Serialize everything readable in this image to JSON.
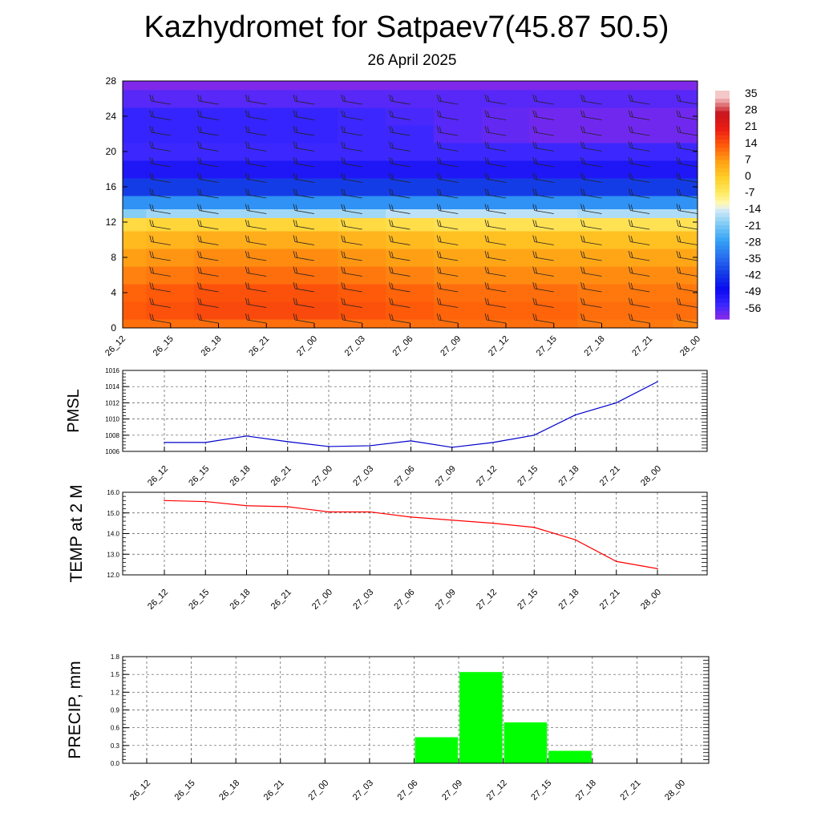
{
  "title": "Kazhydromet for Satpaev7(45.87 50.5)",
  "subtitle": "26 April 2025",
  "chart_data": [
    {
      "type": "heatmap",
      "name": "upper-air-cross-section",
      "x_categories": [
        "26_12",
        "26_15",
        "26_18",
        "26_21",
        "27_00",
        "27_03",
        "27_06",
        "27_09",
        "27_12",
        "27_15",
        "27_18",
        "27_21",
        "28_00"
      ],
      "y_ticks": [
        0,
        4,
        8,
        12,
        16,
        20,
        24,
        28
      ],
      "ylim": [
        0,
        28
      ],
      "colorbar_labels": [
        "35",
        "28",
        "21",
        "14",
        "7",
        "0",
        "-7",
        "-14",
        "-21",
        "-28",
        "-35",
        "-42",
        "-49",
        "-56"
      ],
      "levels": [
        0,
        2,
        4,
        6,
        8,
        10,
        12,
        13,
        14,
        16,
        18,
        20,
        22,
        24,
        26,
        28
      ],
      "temperature_by_level": [
        [
          12,
          12,
          12,
          12,
          12,
          12,
          12,
          12,
          12,
          12,
          11,
          11,
          10
        ],
        [
          14,
          15,
          16,
          16,
          16,
          15,
          14,
          13,
          13,
          13,
          12,
          12,
          12
        ],
        [
          13,
          14,
          15,
          15,
          15,
          14,
          13,
          12,
          12,
          12,
          11,
          11,
          11
        ],
        [
          10,
          11,
          12,
          12,
          12,
          11,
          10,
          9,
          9,
          9,
          9,
          9,
          9
        ],
        [
          7,
          8,
          9,
          9,
          9,
          8,
          7,
          6,
          6,
          6,
          6,
          6,
          6
        ],
        [
          3,
          4,
          5,
          5,
          5,
          4,
          3,
          2,
          2,
          2,
          2,
          2,
          2
        ],
        [
          -3,
          -2,
          -2,
          -2,
          -2,
          -3,
          -4,
          -5,
          -5,
          -5,
          -5,
          -5,
          -5
        ],
        [
          -20,
          -18,
          -18,
          -18,
          -18,
          -18,
          -16,
          -16,
          -16,
          -16,
          -17,
          -17,
          -17
        ],
        [
          -30,
          -30,
          -30,
          -30,
          -30,
          -30,
          -30,
          -30,
          -30,
          -30,
          -30,
          -30,
          -30
        ],
        [
          -42,
          -42,
          -42,
          -42,
          -42,
          -42,
          -42,
          -42,
          -42,
          -42,
          -42,
          -42,
          -42
        ],
        [
          -52,
          -52,
          -52,
          -52,
          -52,
          -52,
          -52,
          -52,
          -52,
          -52,
          -52,
          -52,
          -52
        ],
        [
          -56,
          -56,
          -56,
          -56,
          -56,
          -56,
          -56,
          -56,
          -56,
          -56,
          -56,
          -56,
          -56
        ],
        [
          -55,
          -55,
          -55,
          -55,
          -55,
          -56,
          -56,
          -58,
          -59,
          -60,
          -60,
          -60,
          -60
        ],
        [
          -55,
          -55,
          -55,
          -55,
          -55,
          -56,
          -57,
          -58,
          -59,
          -60,
          -60,
          -60,
          -60
        ],
        [
          -58,
          -58,
          -58,
          -58,
          -58,
          -58,
          -58,
          -58,
          -58,
          -58,
          -58,
          -58,
          -58
        ],
        [
          -61,
          -61,
          -61,
          -61,
          -61,
          -61,
          -61,
          -61,
          -61,
          -61,
          -61,
          -61,
          -61
        ]
      ],
      "wind_barbs": "present"
    },
    {
      "type": "line",
      "name": "pmsl",
      "ylabel": "PMSL",
      "categories": [
        "26_12",
        "26_15",
        "26_18",
        "26_21",
        "27_00",
        "27_03",
        "27_06",
        "27_09",
        "27_12",
        "27_15",
        "27_18",
        "27_21",
        "28_00"
      ],
      "values": [
        1007.1,
        1007.1,
        1007.9,
        1007.2,
        1006.6,
        1006.7,
        1007.3,
        1006.5,
        1007.1,
        1008.0,
        1010.5,
        1012.0,
        1014.6
      ],
      "ylim": [
        1006,
        1016
      ],
      "y_ticks": [
        "1006",
        "1008",
        "1010",
        "1012",
        "1014",
        "1016"
      ],
      "color": "#0000cc",
      "grid": true
    },
    {
      "type": "line",
      "name": "temp-2m",
      "ylabel": "TEMP at 2 M",
      "categories": [
        "26_12",
        "26_15",
        "26_18",
        "26_21",
        "27_00",
        "27_03",
        "27_06",
        "27_09",
        "27_12",
        "27_15",
        "27_18",
        "27_21",
        "28_00"
      ],
      "values": [
        15.6,
        15.55,
        15.35,
        15.3,
        15.05,
        15.05,
        14.8,
        14.65,
        14.5,
        14.3,
        13.7,
        12.65,
        12.3
      ],
      "ylim": [
        12.0,
        16.0
      ],
      "y_ticks": [
        "12.0",
        "13.0",
        "14.0",
        "15.0",
        "16.0"
      ],
      "color": "#ff0000",
      "grid": true
    },
    {
      "type": "bar",
      "name": "precip",
      "ylabel": "PRECIP, mm",
      "categories": [
        "26_12",
        "26_15",
        "26_18",
        "26_21",
        "27_00",
        "27_03",
        "27_06",
        "27_09",
        "27_12",
        "27_15",
        "27_18",
        "27_21",
        "28_00"
      ],
      "values": [
        0,
        0,
        0,
        0,
        0,
        0,
        0,
        0.44,
        1.54,
        0.69,
        0.21,
        0,
        0
      ],
      "ylim": [
        0,
        1.8
      ],
      "y_ticks": [
        "0.0",
        "0.3",
        "0.6",
        "0.9",
        "1.2",
        "1.5",
        "1.8"
      ],
      "color": "#00ff00",
      "grid": true
    }
  ]
}
